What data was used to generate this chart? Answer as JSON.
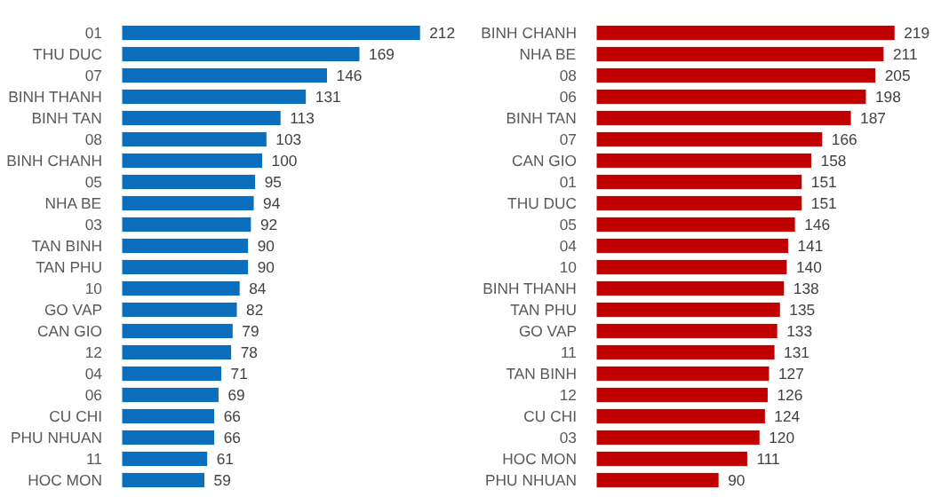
{
  "chart_data": [
    {
      "type": "bar",
      "orientation": "horizontal",
      "data_labels": true,
      "tick_labels": "y",
      "categories": [
        "01",
        "THU DUC",
        "07",
        "BINH THANH",
        "BINH TAN",
        "08",
        "BINH CHANH",
        "05",
        "NHA BE",
        "03",
        "TAN BINH",
        "TAN PHU",
        "10",
        "GO VAP",
        "CAN GIO",
        "12",
        "04",
        "06",
        "CU CHI",
        "PHU NHUAN",
        "11",
        "HOC MON"
      ],
      "color": "#0a6ebd",
      "values": [
        212,
        169,
        146,
        131,
        113,
        103,
        100,
        95,
        94,
        92,
        90,
        90,
        84,
        82,
        79,
        78,
        71,
        69,
        66,
        66,
        61,
        59
      ]
    },
    {
      "type": "bar",
      "orientation": "horizontal",
      "data_labels": true,
      "tick_labels": "y",
      "categories": [
        "BINH CHANH",
        "NHA BE",
        "08",
        "06",
        "BINH TAN",
        "07",
        "CAN GIO",
        "01",
        "THU DUC",
        "05",
        "04",
        "10",
        "BINH THANH",
        "TAN PHU",
        "GO VAP",
        "11",
        "TAN BINH",
        "12",
        "CU CHI",
        "03",
        "HOC MON",
        "PHU NHUAN"
      ],
      "color": "#c00000",
      "values": [
        219,
        211,
        205,
        198,
        187,
        166,
        158,
        151,
        151,
        146,
        141,
        140,
        138,
        135,
        133,
        131,
        127,
        126,
        124,
        120,
        111,
        90
      ]
    }
  ]
}
